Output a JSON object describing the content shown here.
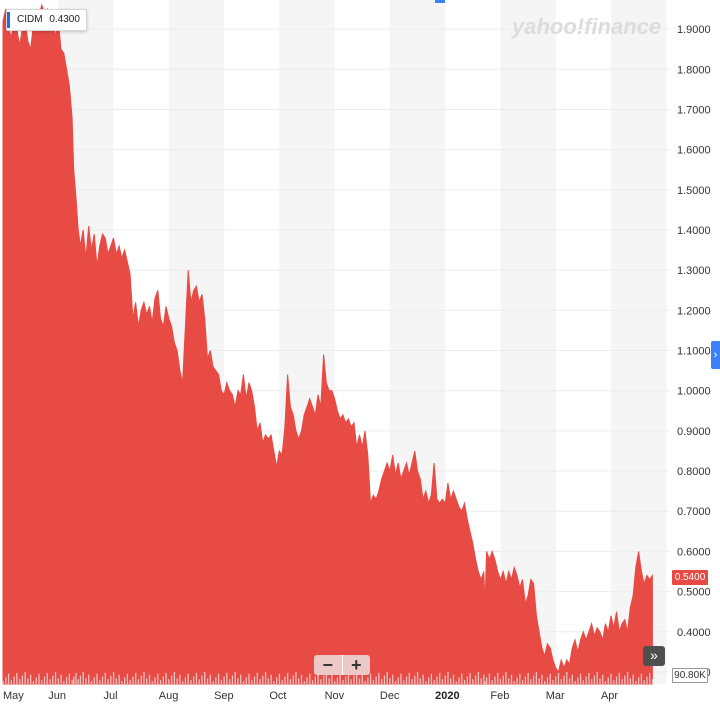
{
  "legend": {
    "symbol": "CIDM",
    "value": "0.4300"
  },
  "watermark": "yahoo!finance",
  "price_flag": "0.5400",
  "volume_flag": "90.80K",
  "zoom": {
    "minus": "−",
    "plus": "+"
  },
  "jump_icon": "»",
  "side_tab_icon": "›",
  "colors": {
    "area": "#e84a44",
    "shade": "#f5f5f5",
    "volume": "#e8c3c3",
    "grid": "#ececec",
    "accent": "#1e6ee6"
  },
  "chart_data": {
    "type": "area",
    "series": [
      {
        "name": "CIDM",
        "color": "#e84a44"
      }
    ],
    "x_ticks": [
      "May",
      "Jun",
      "Jul",
      "Aug",
      "Sep",
      "Oct",
      "Nov",
      "Dec",
      "2020",
      "Feb",
      "Mar",
      "Apr"
    ],
    "y_ticks": [
      "1.9000",
      "1.8000",
      "1.7000",
      "1.6000",
      "1.5000",
      "1.4000",
      "1.3000",
      "1.2000",
      "1.1000",
      "1.0000",
      "0.9000",
      "0.8000",
      "0.7000",
      "0.6000",
      "0.5000",
      "0.4000",
      "0.3000"
    ],
    "ylim": [
      0.27,
      1.96
    ],
    "xlim_months": [
      0,
      12.05
    ],
    "x_start": "2019-05-01",
    "x_end": "2020-05-01",
    "grid": true,
    "points": [
      [
        0.0,
        1.92
      ],
      [
        0.05,
        1.95
      ],
      [
        0.1,
        1.9
      ],
      [
        0.15,
        1.88
      ],
      [
        0.2,
        1.93
      ],
      [
        0.25,
        1.9
      ],
      [
        0.3,
        1.86
      ],
      [
        0.35,
        1.9
      ],
      [
        0.4,
        1.92
      ],
      [
        0.45,
        1.87
      ],
      [
        0.5,
        1.85
      ],
      [
        0.55,
        1.91
      ],
      [
        0.6,
        1.95
      ],
      [
        0.65,
        1.93
      ],
      [
        0.7,
        1.96
      ],
      [
        0.75,
        1.94
      ],
      [
        0.8,
        1.95
      ],
      [
        0.85,
        1.91
      ],
      [
        0.9,
        1.93
      ],
      [
        0.95,
        1.88
      ],
      [
        1.0,
        1.92
      ],
      [
        1.05,
        1.85
      ],
      [
        1.1,
        1.84
      ],
      [
        1.15,
        1.8
      ],
      [
        1.2,
        1.76
      ],
      [
        1.25,
        1.68
      ],
      [
        1.28,
        1.55
      ],
      [
        1.32,
        1.48
      ],
      [
        1.36,
        1.4
      ],
      [
        1.4,
        1.36
      ],
      [
        1.45,
        1.4
      ],
      [
        1.5,
        1.33
      ],
      [
        1.55,
        1.41
      ],
      [
        1.6,
        1.35
      ],
      [
        1.65,
        1.39
      ],
      [
        1.7,
        1.31
      ],
      [
        1.75,
        1.36
      ],
      [
        1.8,
        1.39
      ],
      [
        1.85,
        1.38
      ],
      [
        1.9,
        1.34
      ],
      [
        1.95,
        1.36
      ],
      [
        2.0,
        1.38
      ],
      [
        2.05,
        1.34
      ],
      [
        2.1,
        1.36
      ],
      [
        2.15,
        1.33
      ],
      [
        2.2,
        1.35
      ],
      [
        2.25,
        1.32
      ],
      [
        2.3,
        1.29
      ],
      [
        2.35,
        1.18
      ],
      [
        2.4,
        1.22
      ],
      [
        2.45,
        1.16
      ],
      [
        2.5,
        1.2
      ],
      [
        2.55,
        1.22
      ],
      [
        2.6,
        1.19
      ],
      [
        2.65,
        1.21
      ],
      [
        2.7,
        1.17
      ],
      [
        2.75,
        1.23
      ],
      [
        2.8,
        1.25
      ],
      [
        2.85,
        1.18
      ],
      [
        2.9,
        1.16
      ],
      [
        2.95,
        1.21
      ],
      [
        3.0,
        1.18
      ],
      [
        3.05,
        1.16
      ],
      [
        3.1,
        1.12
      ],
      [
        3.15,
        1.1
      ],
      [
        3.2,
        1.05
      ],
      [
        3.25,
        1.02
      ],
      [
        3.3,
        1.16
      ],
      [
        3.35,
        1.3
      ],
      [
        3.4,
        1.22
      ],
      [
        3.45,
        1.25
      ],
      [
        3.5,
        1.26
      ],
      [
        3.55,
        1.22
      ],
      [
        3.6,
        1.24
      ],
      [
        3.65,
        1.18
      ],
      [
        3.7,
        1.08
      ],
      [
        3.75,
        1.1
      ],
      [
        3.8,
        1.06
      ],
      [
        3.85,
        1.05
      ],
      [
        3.9,
        1.04
      ],
      [
        3.95,
        1.0
      ],
      [
        4.0,
        0.99
      ],
      [
        4.05,
        1.02
      ],
      [
        4.1,
        1.0
      ],
      [
        4.15,
        0.99
      ],
      [
        4.2,
        0.96
      ],
      [
        4.25,
        1.0
      ],
      [
        4.3,
        0.99
      ],
      [
        4.35,
        1.04
      ],
      [
        4.4,
        0.98
      ],
      [
        4.45,
        1.02
      ],
      [
        4.5,
        1.0
      ],
      [
        4.55,
        0.96
      ],
      [
        4.6,
        0.9
      ],
      [
        4.65,
        0.92
      ],
      [
        4.7,
        0.87
      ],
      [
        4.75,
        0.89
      ],
      [
        4.8,
        0.88
      ],
      [
        4.85,
        0.89
      ],
      [
        4.9,
        0.85
      ],
      [
        4.95,
        0.81
      ],
      [
        5.0,
        0.85
      ],
      [
        5.05,
        0.84
      ],
      [
        5.1,
        0.91
      ],
      [
        5.15,
        1.04
      ],
      [
        5.2,
        0.96
      ],
      [
        5.25,
        0.94
      ],
      [
        5.3,
        0.9
      ],
      [
        5.35,
        0.88
      ],
      [
        5.4,
        0.9
      ],
      [
        5.45,
        0.94
      ],
      [
        5.5,
        0.96
      ],
      [
        5.55,
        0.98
      ],
      [
        5.6,
        0.96
      ],
      [
        5.65,
        0.94
      ],
      [
        5.7,
        0.99
      ],
      [
        5.75,
        0.96
      ],
      [
        5.8,
        1.09
      ],
      [
        5.85,
        1.02
      ],
      [
        5.9,
        1.0
      ],
      [
        5.95,
        1.0
      ],
      [
        6.0,
        0.98
      ],
      [
        6.05,
        0.95
      ],
      [
        6.1,
        0.93
      ],
      [
        6.15,
        0.94
      ],
      [
        6.2,
        0.92
      ],
      [
        6.25,
        0.93
      ],
      [
        6.3,
        0.91
      ],
      [
        6.35,
        0.92
      ],
      [
        6.4,
        0.86
      ],
      [
        6.45,
        0.89
      ],
      [
        6.5,
        0.86
      ],
      [
        6.55,
        0.9
      ],
      [
        6.6,
        0.84
      ],
      [
        6.65,
        0.72
      ],
      [
        6.7,
        0.74
      ],
      [
        6.75,
        0.73
      ],
      [
        6.8,
        0.75
      ],
      [
        6.85,
        0.78
      ],
      [
        6.9,
        0.8
      ],
      [
        6.95,
        0.82
      ],
      [
        7.0,
        0.8
      ],
      [
        7.05,
        0.84
      ],
      [
        7.1,
        0.79
      ],
      [
        7.15,
        0.82
      ],
      [
        7.2,
        0.78
      ],
      [
        7.25,
        0.8
      ],
      [
        7.3,
        0.82
      ],
      [
        7.35,
        0.79
      ],
      [
        7.4,
        0.82
      ],
      [
        7.45,
        0.85
      ],
      [
        7.5,
        0.8
      ],
      [
        7.55,
        0.78
      ],
      [
        7.6,
        0.73
      ],
      [
        7.65,
        0.75
      ],
      [
        7.7,
        0.72
      ],
      [
        7.75,
        0.74
      ],
      [
        7.8,
        0.82
      ],
      [
        7.85,
        0.73
      ],
      [
        7.9,
        0.72
      ],
      [
        7.95,
        0.73
      ],
      [
        8.0,
        0.72
      ],
      [
        8.05,
        0.77
      ],
      [
        8.1,
        0.73
      ],
      [
        8.15,
        0.75
      ],
      [
        8.2,
        0.73
      ],
      [
        8.25,
        0.71
      ],
      [
        8.3,
        0.7
      ],
      [
        8.35,
        0.72
      ],
      [
        8.4,
        0.68
      ],
      [
        8.45,
        0.65
      ],
      [
        8.5,
        0.62
      ],
      [
        8.55,
        0.58
      ],
      [
        8.6,
        0.55
      ],
      [
        8.65,
        0.53
      ],
      [
        8.7,
        0.55
      ],
      [
        8.72,
        0.47
      ],
      [
        8.75,
        0.6
      ],
      [
        8.8,
        0.58
      ],
      [
        8.85,
        0.6
      ],
      [
        8.9,
        0.58
      ],
      [
        8.95,
        0.55
      ],
      [
        9.0,
        0.53
      ],
      [
        9.05,
        0.55
      ],
      [
        9.1,
        0.52
      ],
      [
        9.15,
        0.55
      ],
      [
        9.2,
        0.53
      ],
      [
        9.25,
        0.56
      ],
      [
        9.3,
        0.54
      ],
      [
        9.35,
        0.51
      ],
      [
        9.4,
        0.53
      ],
      [
        9.45,
        0.47
      ],
      [
        9.5,
        0.49
      ],
      [
        9.55,
        0.53
      ],
      [
        9.6,
        0.52
      ],
      [
        9.65,
        0.44
      ],
      [
        9.7,
        0.4
      ],
      [
        9.75,
        0.36
      ],
      [
        9.8,
        0.34
      ],
      [
        9.85,
        0.37
      ],
      [
        9.9,
        0.36
      ],
      [
        9.95,
        0.33
      ],
      [
        10.0,
        0.31
      ],
      [
        10.05,
        0.3
      ],
      [
        10.1,
        0.33
      ],
      [
        10.15,
        0.31
      ],
      [
        10.2,
        0.33
      ],
      [
        10.25,
        0.32
      ],
      [
        10.3,
        0.36
      ],
      [
        10.35,
        0.38
      ],
      [
        10.4,
        0.35
      ],
      [
        10.45,
        0.38
      ],
      [
        10.5,
        0.4
      ],
      [
        10.55,
        0.38
      ],
      [
        10.6,
        0.4
      ],
      [
        10.65,
        0.42
      ],
      [
        10.7,
        0.39
      ],
      [
        10.75,
        0.41
      ],
      [
        10.8,
        0.4
      ],
      [
        10.85,
        0.38
      ],
      [
        10.9,
        0.42
      ],
      [
        10.95,
        0.4
      ],
      [
        11.0,
        0.44
      ],
      [
        11.05,
        0.41
      ],
      [
        11.1,
        0.45
      ],
      [
        11.15,
        0.4
      ],
      [
        11.2,
        0.42
      ],
      [
        11.25,
        0.43
      ],
      [
        11.3,
        0.4
      ],
      [
        11.35,
        0.46
      ],
      [
        11.4,
        0.49
      ],
      [
        11.45,
        0.56
      ],
      [
        11.5,
        0.6
      ],
      [
        11.55,
        0.55
      ],
      [
        11.6,
        0.52
      ],
      [
        11.65,
        0.54
      ],
      [
        11.7,
        0.53
      ],
      [
        11.75,
        0.54
      ]
    ]
  }
}
